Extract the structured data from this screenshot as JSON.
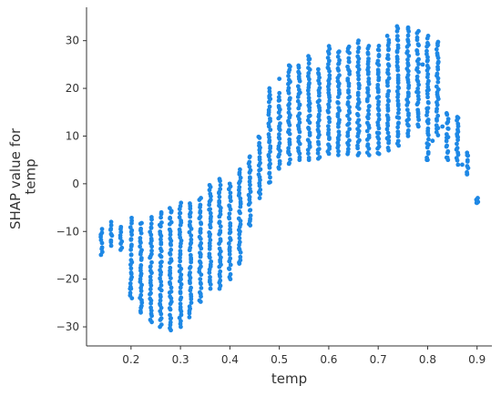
{
  "chart_data": {
    "type": "scatter",
    "xlabel": "temp",
    "ylabel_lines": [
      "SHAP value for",
      "temp"
    ],
    "xlim": [
      0.11,
      0.93
    ],
    "ylim": [
      -34,
      37
    ],
    "x_ticks": [
      0.2,
      0.3,
      0.4,
      0.5,
      0.6,
      0.7,
      0.8,
      0.9
    ],
    "x_tick_labels": [
      "0.2",
      "0.3",
      "0.4",
      "0.5",
      "0.6",
      "0.7",
      "0.8",
      "0.9"
    ],
    "y_ticks": [
      -30,
      -20,
      -10,
      0,
      10,
      20,
      30
    ],
    "y_tick_labels": [
      "−30",
      "−20",
      "−10",
      "0",
      "10",
      "20",
      "30"
    ],
    "point_color": "#1e88e5",
    "grid": false,
    "columns": [
      {
        "x": 0.14,
        "ymin": -15,
        "ymax": -9.5
      },
      {
        "x": 0.16,
        "ymin": -13,
        "ymax": -8
      },
      {
        "x": 0.18,
        "ymin": -14,
        "ymax": -9
      },
      {
        "x": 0.2,
        "ymin": -24,
        "ymax": -7
      },
      {
        "x": 0.22,
        "ymin": -27,
        "ymax": -8
      },
      {
        "x": 0.24,
        "ymin": -29,
        "ymax": -7
      },
      {
        "x": 0.26,
        "ymin": -30,
        "ymax": -6
      },
      {
        "x": 0.28,
        "ymin": -31,
        "ymax": -5
      },
      {
        "x": 0.3,
        "ymin": -30,
        "ymax": -4
      },
      {
        "x": 0.32,
        "ymin": -28,
        "ymax": -4
      },
      {
        "x": 0.34,
        "ymin": -25,
        "ymax": -3
      },
      {
        "x": 0.36,
        "ymin": -22,
        "ymax": 0
      },
      {
        "x": 0.38,
        "ymin": -22,
        "ymax": 1
      },
      {
        "x": 0.4,
        "ymin": -20,
        "ymax": 0
      },
      {
        "x": 0.42,
        "ymin": -17,
        "ymax": 3
      },
      {
        "x": 0.44,
        "ymin": -9,
        "ymax": 6
      },
      {
        "x": 0.46,
        "ymin": -3,
        "ymax": 10
      },
      {
        "x": 0.48,
        "ymin": 0,
        "ymax": 20
      },
      {
        "x": 0.5,
        "ymin": 3,
        "ymax": 19
      },
      {
        "x": 0.52,
        "ymin": 4,
        "ymax": 25
      },
      {
        "x": 0.54,
        "ymin": 5,
        "ymax": 25
      },
      {
        "x": 0.56,
        "ymin": 5,
        "ymax": 27
      },
      {
        "x": 0.58,
        "ymin": 5,
        "ymax": 24
      },
      {
        "x": 0.6,
        "ymin": 6,
        "ymax": 29
      },
      {
        "x": 0.62,
        "ymin": 6,
        "ymax": 28
      },
      {
        "x": 0.64,
        "ymin": 6,
        "ymax": 29
      },
      {
        "x": 0.66,
        "ymin": 6,
        "ymax": 30
      },
      {
        "x": 0.68,
        "ymin": 6,
        "ymax": 29
      },
      {
        "x": 0.7,
        "ymin": 6,
        "ymax": 29
      },
      {
        "x": 0.72,
        "ymin": 7,
        "ymax": 31
      },
      {
        "x": 0.74,
        "ymin": 8,
        "ymax": 33
      },
      {
        "x": 0.76,
        "ymin": 10,
        "ymax": 33
      },
      {
        "x": 0.78,
        "ymin": 12,
        "ymax": 32
      },
      {
        "x": 0.8,
        "ymin": 5,
        "ymax": 31
      },
      {
        "x": 0.82,
        "ymin": 10,
        "ymax": 30
      },
      {
        "x": 0.84,
        "ymin": 5,
        "ymax": 15
      },
      {
        "x": 0.86,
        "ymin": 4,
        "ymax": 14
      },
      {
        "x": 0.88,
        "ymin": 2,
        "ymax": 6.5
      },
      {
        "x": 0.9,
        "ymin": -4,
        "ymax": -3
      }
    ],
    "stray_points": [
      {
        "x": 0.8,
        "y": 5
      },
      {
        "x": 0.81,
        "y": 9
      },
      {
        "x": 0.79,
        "y": 25
      },
      {
        "x": 0.84,
        "y": 5.5
      },
      {
        "x": 0.83,
        "y": 12
      },
      {
        "x": 0.86,
        "y": 14
      },
      {
        "x": 0.86,
        "y": 10
      },
      {
        "x": 0.87,
        "y": 4
      },
      {
        "x": 0.88,
        "y": 6
      },
      {
        "x": 0.88,
        "y": 2
      },
      {
        "x": 0.9,
        "y": -3.5
      },
      {
        "x": 0.9,
        "y": -4
      },
      {
        "x": 0.5,
        "y": 22
      },
      {
        "x": 0.48,
        "y": 18
      },
      {
        "x": 0.2,
        "y": -22
      },
      {
        "x": 0.22,
        "y": -26
      }
    ]
  }
}
